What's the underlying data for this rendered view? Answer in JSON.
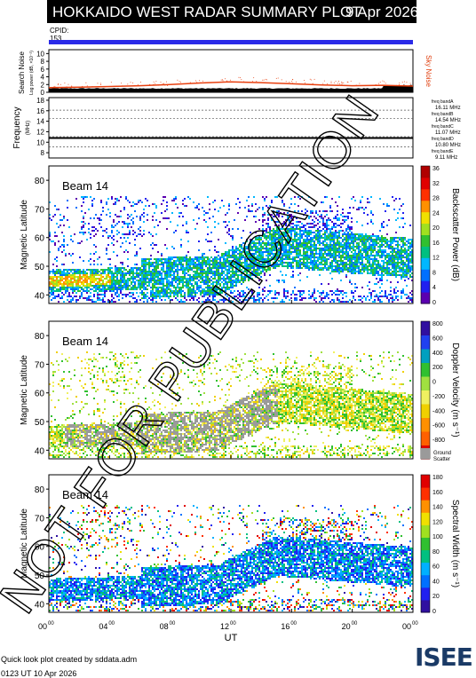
{
  "header": {
    "title": "HOKKAIDO WEST RADAR SUMMARY PLOT",
    "date": "9 Apr 2026"
  },
  "cpid": {
    "label": "CPID:",
    "value": "153"
  },
  "noise_panel": {
    "ylabel": "Search Noise",
    "ylabel_sub": "Log power (dB, ×10⁻³)",
    "right_label": "Sky Noise",
    "y_ticks": [
      "0",
      "2",
      "4",
      "6",
      "8",
      "10"
    ]
  },
  "freq_panel": {
    "ylabel": "Frequency",
    "ylabel_sub": "(MHz)",
    "y_ticks": [
      "8",
      "10",
      "12",
      "14",
      "16",
      "18"
    ],
    "bands": [
      "freq bandA 16.11 MHz",
      "freq bandB 14.54 MHz",
      "freq bandC 11.07 MHz",
      "freq bandD 10.80 MHz",
      "freq bandE 9.11 MHz"
    ]
  },
  "x_axis": {
    "ticks": [
      "00",
      "04",
      "08",
      "12",
      "16",
      "20",
      "00"
    ],
    "sup": "00",
    "label": "UT"
  },
  "panels": [
    {
      "beam": "Beam 14",
      "ylabel": "Magnetic Latitude",
      "y_ticks": [
        "40",
        "50",
        "60",
        "70",
        "80"
      ],
      "cbar_label": "Backscatter Power (dB)",
      "cbar_ticks": [
        "0",
        "4",
        "8",
        "12",
        "16",
        "20",
        "24",
        "28",
        "32",
        "36"
      ],
      "cbar_colors": [
        "#5b00b0",
        "#2020f0",
        "#0070ff",
        "#00b8ff",
        "#00c080",
        "#30c030",
        "#a0e020",
        "#f0e000",
        "#ff9000",
        "#ff3000",
        "#e00000",
        "#b00000"
      ]
    },
    {
      "beam": "Beam 14",
      "ylabel": "Magnetic Latitude",
      "y_ticks": [
        "40",
        "50",
        "60",
        "70",
        "80"
      ],
      "cbar_label": "Doppler Velocity (m s⁻¹)",
      "cbar_ticks": [
        "-800",
        "-600",
        "-400",
        "-200",
        "0",
        "200",
        "400",
        "600",
        "800"
      ],
      "cbar_colors": [
        "#e00000",
        "#ff6000",
        "#ff9000",
        "#f0d000",
        "#f0f060",
        "#a0e040",
        "#30c030",
        "#00a0c0",
        "#2040f0",
        "#3010a0"
      ],
      "ground_label": "Ground Scatter"
    },
    {
      "beam": "Beam 14",
      "ylabel": "Magnetic Latitude",
      "y_ticks": [
        "40",
        "50",
        "60",
        "70",
        "80"
      ],
      "cbar_label": "Spectral Width (m s⁻¹)",
      "cbar_ticks": [
        "0",
        "20",
        "40",
        "60",
        "80",
        "100",
        "120",
        "140",
        "160",
        "180"
      ],
      "cbar_colors": [
        "#3010a0",
        "#2020f0",
        "#0070ff",
        "#00b0ff",
        "#00c080",
        "#30c030",
        "#a0e020",
        "#f0e000",
        "#ff9000",
        "#ff3000",
        "#e00000"
      ]
    }
  ],
  "watermark": "NOT FOR PUBLICATION",
  "footer": {
    "credit": "Quick look plot created by sddata.adm",
    "timestamp": "0123 UT 10 Apr 2026"
  },
  "logo": {
    "text": "ISEE"
  },
  "chart_data": [
    {
      "type": "line",
      "title": "Search Noise / Sky Noise",
      "x": [
        0,
        2,
        4,
        6,
        8,
        10,
        12,
        14,
        16,
        18,
        20,
        22,
        24
      ],
      "xlim": [
        0,
        24
      ],
      "ylim": [
        0,
        11
      ],
      "series": [
        {
          "name": "Sky Noise",
          "values": [
            1.2,
            1.3,
            1.5,
            1.7,
            2.0,
            2.4,
            2.7,
            2.5,
            2.2,
            1.9,
            1.7,
            1.8,
            1.6
          ]
        }
      ]
    },
    {
      "type": "line",
      "title": "Frequency",
      "xlim": [
        0,
        24
      ],
      "ylim": [
        7,
        18.5
      ],
      "series": [
        {
          "name": "freq",
          "values": [
            10.8,
            10.8,
            10.8,
            10.8,
            10.8,
            10.8,
            10.8,
            10.8,
            10.8,
            10.8,
            10.8,
            10.8,
            10.8
          ]
        }
      ]
    },
    {
      "type": "heatmap",
      "title": "Beam 14 Backscatter Power",
      "xlim": [
        0,
        24
      ],
      "ylim": [
        37,
        85
      ],
      "zrange": [
        0,
        36
      ]
    },
    {
      "type": "heatmap",
      "title": "Beam 14 Doppler Velocity",
      "xlim": [
        0,
        24
      ],
      "ylim": [
        37,
        85
      ],
      "zrange": [
        -800,
        800
      ]
    },
    {
      "type": "heatmap",
      "title": "Beam 14 Spectral Width",
      "xlim": [
        0,
        24
      ],
      "ylim": [
        37,
        85
      ],
      "zrange": [
        0,
        180
      ]
    }
  ]
}
